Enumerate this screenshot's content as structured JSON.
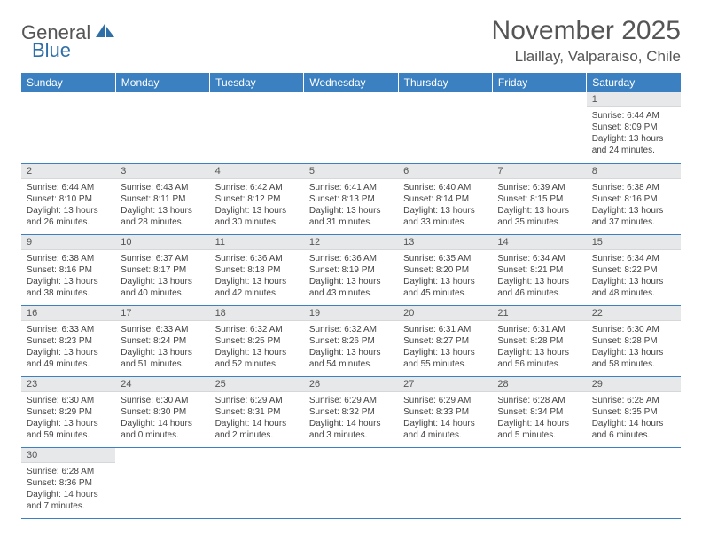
{
  "logo": {
    "general": "General",
    "blue": "Blue"
  },
  "title": "November 2025",
  "location": "Llaillay, Valparaiso, Chile",
  "colors": {
    "header_bg": "#3b81c2",
    "header_text": "#ffffff",
    "daynum_bg": "#e7e8e9",
    "border": "#3b81c2",
    "logo_blue": "#2f6fa8"
  },
  "layout": {
    "cols": 7,
    "rows": 6,
    "first_day_col": 6
  },
  "dayHeaders": [
    "Sunday",
    "Monday",
    "Tuesday",
    "Wednesday",
    "Thursday",
    "Friday",
    "Saturday"
  ],
  "days": [
    {
      "n": 1,
      "sunrise": "6:44 AM",
      "sunset": "8:09 PM",
      "daylight": "13 hours and 24 minutes."
    },
    {
      "n": 2,
      "sunrise": "6:44 AM",
      "sunset": "8:10 PM",
      "daylight": "13 hours and 26 minutes."
    },
    {
      "n": 3,
      "sunrise": "6:43 AM",
      "sunset": "8:11 PM",
      "daylight": "13 hours and 28 minutes."
    },
    {
      "n": 4,
      "sunrise": "6:42 AM",
      "sunset": "8:12 PM",
      "daylight": "13 hours and 30 minutes."
    },
    {
      "n": 5,
      "sunrise": "6:41 AM",
      "sunset": "8:13 PM",
      "daylight": "13 hours and 31 minutes."
    },
    {
      "n": 6,
      "sunrise": "6:40 AM",
      "sunset": "8:14 PM",
      "daylight": "13 hours and 33 minutes."
    },
    {
      "n": 7,
      "sunrise": "6:39 AM",
      "sunset": "8:15 PM",
      "daylight": "13 hours and 35 minutes."
    },
    {
      "n": 8,
      "sunrise": "6:38 AM",
      "sunset": "8:16 PM",
      "daylight": "13 hours and 37 minutes."
    },
    {
      "n": 9,
      "sunrise": "6:38 AM",
      "sunset": "8:16 PM",
      "daylight": "13 hours and 38 minutes."
    },
    {
      "n": 10,
      "sunrise": "6:37 AM",
      "sunset": "8:17 PM",
      "daylight": "13 hours and 40 minutes."
    },
    {
      "n": 11,
      "sunrise": "6:36 AM",
      "sunset": "8:18 PM",
      "daylight": "13 hours and 42 minutes."
    },
    {
      "n": 12,
      "sunrise": "6:36 AM",
      "sunset": "8:19 PM",
      "daylight": "13 hours and 43 minutes."
    },
    {
      "n": 13,
      "sunrise": "6:35 AM",
      "sunset": "8:20 PM",
      "daylight": "13 hours and 45 minutes."
    },
    {
      "n": 14,
      "sunrise": "6:34 AM",
      "sunset": "8:21 PM",
      "daylight": "13 hours and 46 minutes."
    },
    {
      "n": 15,
      "sunrise": "6:34 AM",
      "sunset": "8:22 PM",
      "daylight": "13 hours and 48 minutes."
    },
    {
      "n": 16,
      "sunrise": "6:33 AM",
      "sunset": "8:23 PM",
      "daylight": "13 hours and 49 minutes."
    },
    {
      "n": 17,
      "sunrise": "6:33 AM",
      "sunset": "8:24 PM",
      "daylight": "13 hours and 51 minutes."
    },
    {
      "n": 18,
      "sunrise": "6:32 AM",
      "sunset": "8:25 PM",
      "daylight": "13 hours and 52 minutes."
    },
    {
      "n": 19,
      "sunrise": "6:32 AM",
      "sunset": "8:26 PM",
      "daylight": "13 hours and 54 minutes."
    },
    {
      "n": 20,
      "sunrise": "6:31 AM",
      "sunset": "8:27 PM",
      "daylight": "13 hours and 55 minutes."
    },
    {
      "n": 21,
      "sunrise": "6:31 AM",
      "sunset": "8:28 PM",
      "daylight": "13 hours and 56 minutes."
    },
    {
      "n": 22,
      "sunrise": "6:30 AM",
      "sunset": "8:28 PM",
      "daylight": "13 hours and 58 minutes."
    },
    {
      "n": 23,
      "sunrise": "6:30 AM",
      "sunset": "8:29 PM",
      "daylight": "13 hours and 59 minutes."
    },
    {
      "n": 24,
      "sunrise": "6:30 AM",
      "sunset": "8:30 PM",
      "daylight": "14 hours and 0 minutes."
    },
    {
      "n": 25,
      "sunrise": "6:29 AM",
      "sunset": "8:31 PM",
      "daylight": "14 hours and 2 minutes."
    },
    {
      "n": 26,
      "sunrise": "6:29 AM",
      "sunset": "8:32 PM",
      "daylight": "14 hours and 3 minutes."
    },
    {
      "n": 27,
      "sunrise": "6:29 AM",
      "sunset": "8:33 PM",
      "daylight": "14 hours and 4 minutes."
    },
    {
      "n": 28,
      "sunrise": "6:28 AM",
      "sunset": "8:34 PM",
      "daylight": "14 hours and 5 minutes."
    },
    {
      "n": 29,
      "sunrise": "6:28 AM",
      "sunset": "8:35 PM",
      "daylight": "14 hours and 6 minutes."
    },
    {
      "n": 30,
      "sunrise": "6:28 AM",
      "sunset": "8:36 PM",
      "daylight": "14 hours and 7 minutes."
    }
  ],
  "labels": {
    "sunrise": "Sunrise:",
    "sunset": "Sunset:",
    "daylight": "Daylight:"
  }
}
